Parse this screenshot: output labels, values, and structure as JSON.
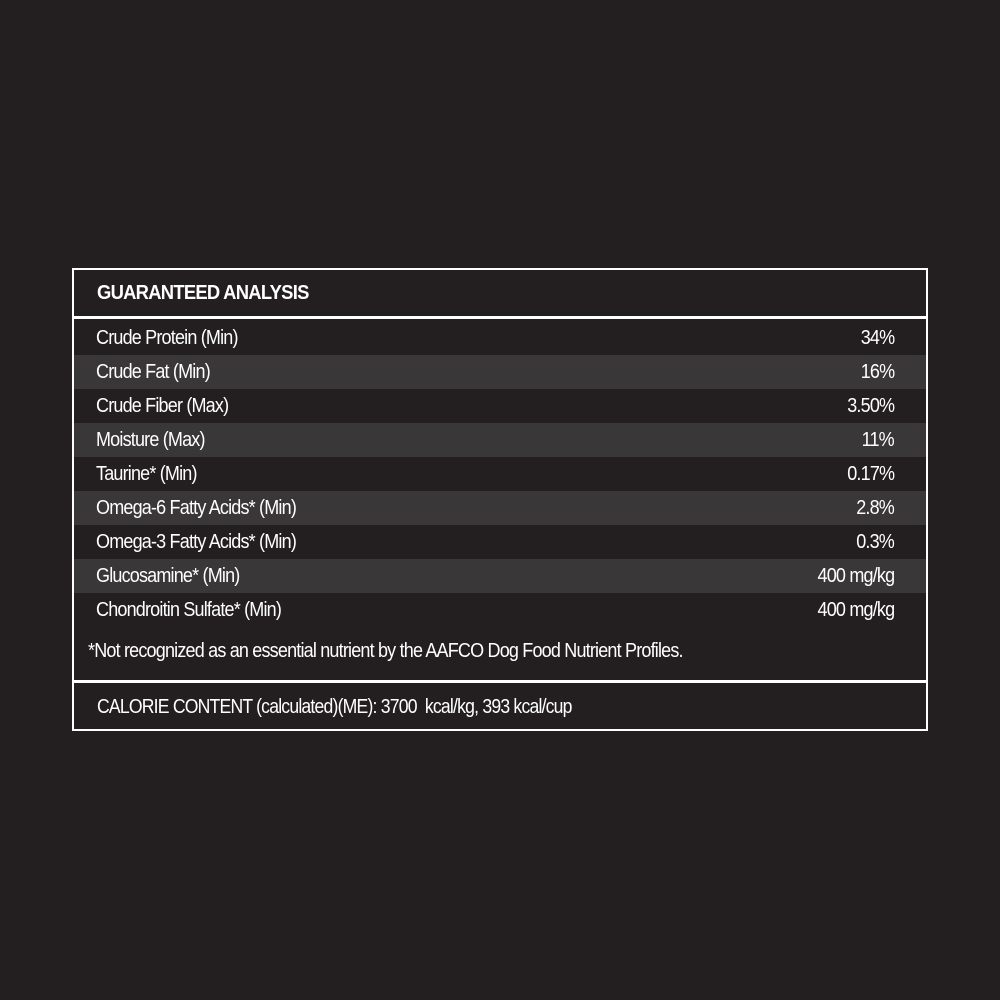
{
  "title": "GUARANTEED ANALYSIS",
  "rows": [
    {
      "label": "Crude Protein (Min)",
      "value": "34%"
    },
    {
      "label": "Crude Fat (Min)",
      "value": "16%"
    },
    {
      "label": "Crude Fiber (Max)",
      "value": "3.50%"
    },
    {
      "label": "Moisture (Max)",
      "value": "11%"
    },
    {
      "label": "Taurine* (Min)",
      "value": "0.17%"
    },
    {
      "label": "Omega-6 Fatty Acids* (Min)",
      "value": "2.8%"
    },
    {
      "label": "Omega-3 Fatty Acids* (Min)",
      "value": "0.3%"
    },
    {
      "label": "Glucosamine* (Min)",
      "value": "400 mg/kg"
    },
    {
      "label": "Chondroitin Sulfate* (Min)",
      "value": "400 mg/kg"
    }
  ],
  "footnote": "*Not recognized as an essential nutrient by the AAFCO Dog Food Nutrient Profiles.",
  "calorie_content": "CALORIE CONTENT (calculated)(ME): 3700  kcal/kg, 393 kcal/cup",
  "colors": {
    "background": "#231f20",
    "stripe": "#3a3738",
    "text": "#ffffff"
  }
}
